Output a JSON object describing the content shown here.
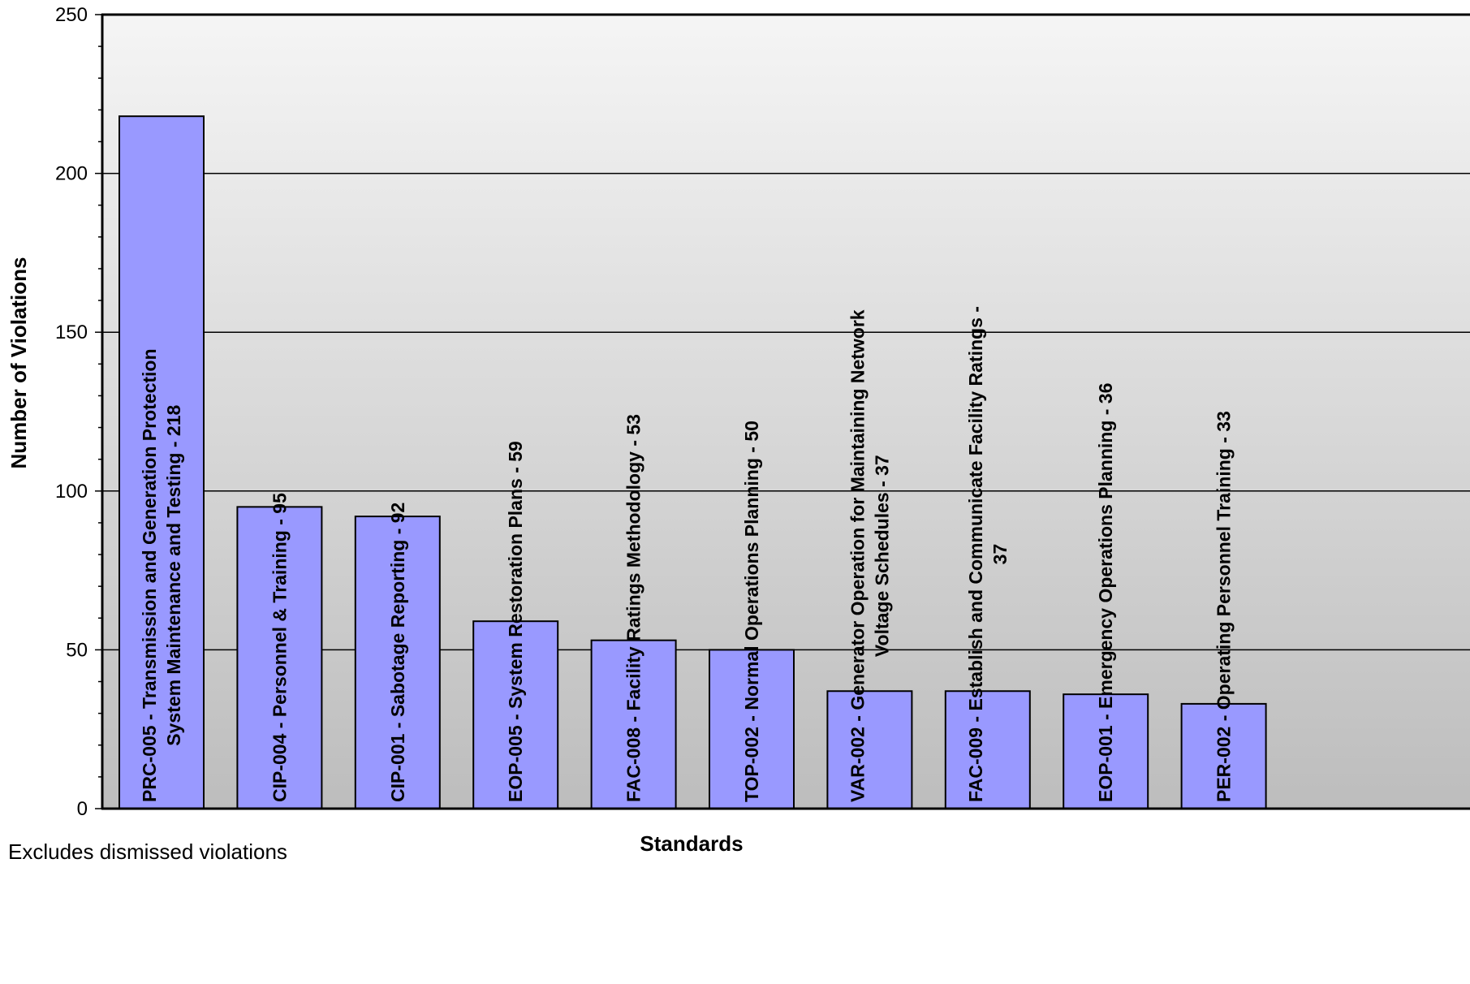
{
  "chart_data": {
    "type": "bar",
    "xlabel": "Standards",
    "ylabel": "Number of Violations",
    "ylim": [
      0,
      250
    ],
    "yticks": [
      0,
      50,
      100,
      150,
      200,
      250
    ],
    "grid": true,
    "legend": "none",
    "colors": {
      "bar_fill": "#9999FF",
      "bar_stroke": "#000000",
      "plot_bg_top": "#F5F5F5",
      "plot_bg_bottom": "#BDBDBD"
    },
    "categories": [
      "PRC-005 - Transmission and Generation Protection System Maintenance and Testing - 218",
      "CIP-004 - Personnel & Training - 95",
      "CIP-001 - Sabotage Reporting - 92",
      "EOP-005 - System Restoration Plans - 59",
      "FAC-008 - Facility Ratings Methodology - 53",
      "TOP-002 - Normal Operations Planning - 50",
      "VAR-002 - Generator Operation for Maintaining Network Voltage Schedules - 37",
      "FAC-009 - Establish and Communicate Facility Ratings - 37",
      "EOP-001 - Emergency Operations Planning - 36",
      "PER-002 - Operating Personnel Training - 33"
    ],
    "label_lines": [
      [
        "PRC-005 - Transmission and Generation Protection",
        "System Maintenance and Testing - 218"
      ],
      [
        "CIP-004 - Personnel & Training  - 95"
      ],
      [
        "CIP-001 - Sabotage Reporting - 92"
      ],
      [
        "EOP-005 - System Restoration Plans - 59"
      ],
      [
        "FAC-008 - Facility Ratings Methodology  - 53"
      ],
      [
        "TOP-002 - Normal Operations Planning - 50"
      ],
      [
        "VAR-002 - Generator Operation for Maintaining Network",
        "Voltage Schedules - 37"
      ],
      [
        "FAC-009 - Establish and Communicate Facility Ratings -",
        "37"
      ],
      [
        "EOP-001 - Emergency Operations Planning - 36"
      ],
      [
        "PER-002 - Operating Personnel Training - 33"
      ]
    ],
    "values": [
      218,
      95,
      92,
      59,
      53,
      50,
      37,
      37,
      36,
      33
    ]
  },
  "footnote": "Excludes dismissed violations"
}
